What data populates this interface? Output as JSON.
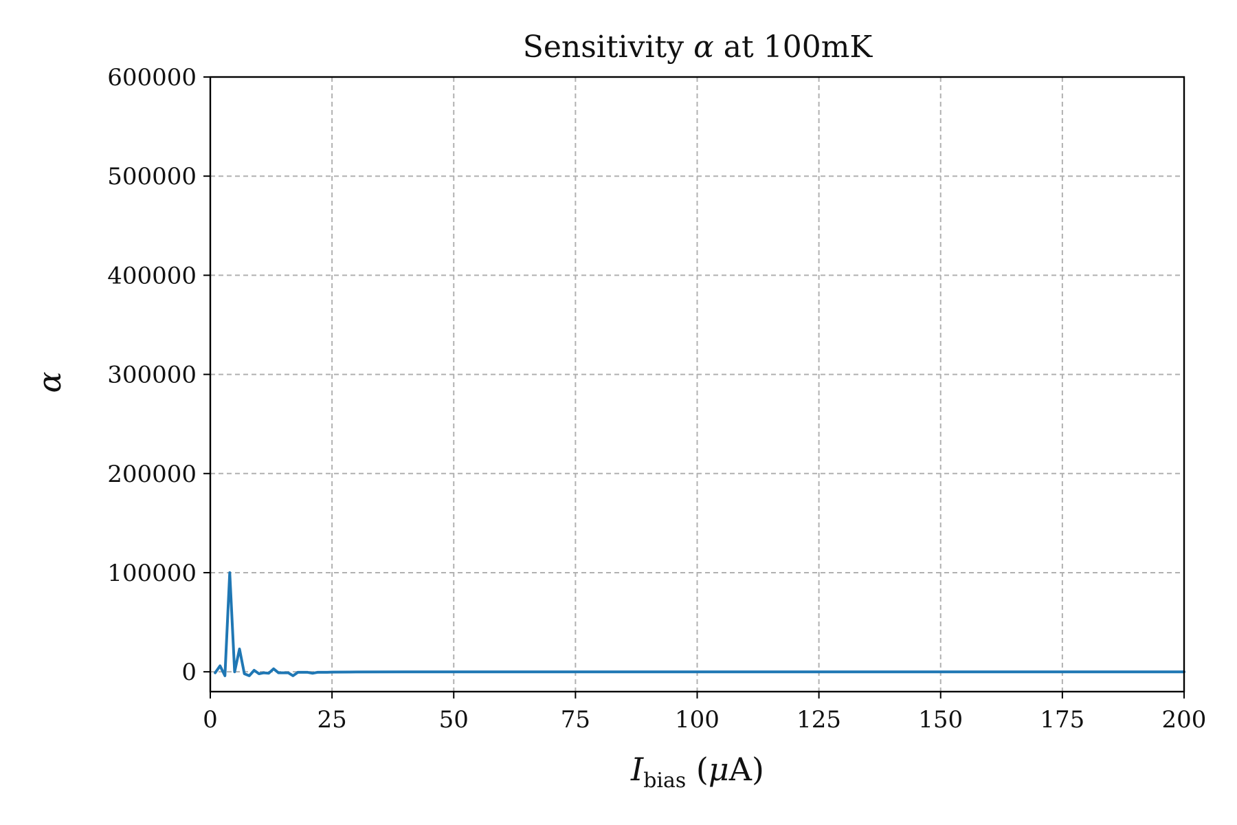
{
  "chart_data": {
    "type": "line",
    "title_parts": {
      "prefix": "Sensitivity ",
      "symbol": "α",
      "middle": " at 100",
      "unit": "mK"
    },
    "xlabel_parts": {
      "symbol": "I",
      "subscript": "bias",
      "open": " (",
      "unit_symbol": "μ",
      "unit": "A",
      "close": ")"
    },
    "ylabel": "α",
    "xlim": [
      0,
      200
    ],
    "ylim": [
      -20000,
      600000
    ],
    "xticks": [
      0,
      25,
      50,
      75,
      100,
      125,
      150,
      175,
      200
    ],
    "yticks": [
      0,
      100000,
      200000,
      300000,
      400000,
      500000,
      600000
    ],
    "grid": true,
    "series": [
      {
        "color": "#1f77b4",
        "x": [
          1,
          2,
          3,
          4,
          5,
          6,
          7,
          8,
          9,
          10,
          11,
          12,
          13,
          14,
          15,
          16,
          17,
          18,
          19,
          20,
          21,
          22,
          23,
          24,
          25,
          30,
          40,
          50,
          75,
          100,
          125,
          150,
          175,
          200
        ],
        "y": [
          -1000,
          6000,
          -4000,
          100000,
          0,
          23000,
          -2000,
          -4000,
          1500,
          -2000,
          -1000,
          -1500,
          3000,
          -1000,
          -1000,
          -1000,
          -4000,
          -500,
          -500,
          -500,
          -1500,
          -500,
          -500,
          -500,
          -300,
          -200,
          0,
          0,
          0,
          0,
          0,
          0,
          0,
          0
        ]
      }
    ]
  }
}
